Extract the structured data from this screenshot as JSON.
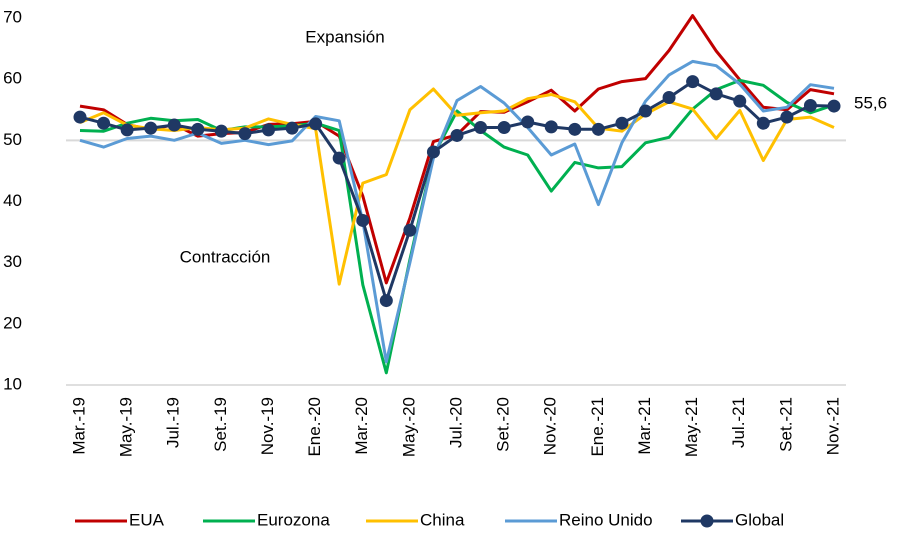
{
  "chart_data": {
    "type": "line",
    "annotations": [
      "Expansión",
      "Contracción"
    ],
    "hline": 50,
    "categories": [
      "Mar.-19",
      null,
      "May.-19",
      null,
      "Jul.-19",
      null,
      "Set.-19",
      null,
      "Nov.-19",
      null,
      "Ene.-20",
      null,
      "Mar.-20",
      null,
      "May.-20",
      null,
      "Jul.-20",
      null,
      "Set.-20",
      null,
      "Nov.-20",
      null,
      "Ene.-21",
      null,
      "Mar.-21",
      null,
      "May.-21",
      null,
      "Jul.-21",
      null,
      "Set.-21",
      null,
      "Nov.-21"
    ],
    "series": [
      {
        "name": "EUA",
        "color": "#c00000",
        "values": [
          55.6,
          55.0,
          52.6,
          51.7,
          52.6,
          50.7,
          51.1,
          51.3,
          52.6,
          52.7,
          53.1,
          50.7,
          40.9,
          26.7,
          37.3,
          49.8,
          50.9,
          54.7,
          54.6,
          56.3,
          58.2,
          54.8,
          58.4,
          59.6,
          60.1,
          64.7,
          70.4,
          64.6,
          59.9,
          55.4,
          55.0,
          58.3,
          57.6
        ]
      },
      {
        "name": "Eurozona",
        "color": "#00b050",
        "values": [
          51.6,
          51.5,
          52.8,
          53.6,
          53.2,
          53.4,
          51.6,
          52.2,
          52.2,
          52.4,
          52.8,
          51.6,
          26.4,
          12.0,
          30.5,
          47.5,
          54.8,
          51.6,
          48.9,
          47.6,
          41.7,
          46.4,
          45.5,
          45.7,
          49.6,
          50.5,
          55.1,
          58.3,
          59.8,
          59.0,
          56.2,
          54.5,
          55.8
        ]
      },
      {
        "name": "China",
        "color": "#ffc000",
        "values": [
          52.9,
          54.5,
          52.5,
          51.9,
          51.6,
          52.1,
          51.7,
          52.0,
          53.5,
          52.6,
          51.9,
          26.5,
          43.0,
          44.4,
          55.0,
          58.4,
          54.1,
          54.5,
          54.8,
          56.8,
          57.5,
          56.3,
          52.0,
          51.5,
          54.3,
          56.3,
          55.1,
          50.3,
          54.9,
          46.7,
          53.4,
          53.8,
          52.1
        ]
      },
      {
        "name": "Reino Unido",
        "color": "#5b9bd5",
        "values": [
          50.0,
          48.9,
          50.3,
          50.7,
          50.0,
          51.2,
          49.5,
          50.0,
          49.3,
          49.9,
          53.9,
          53.2,
          36.8,
          13.8,
          30.0,
          47.1,
          56.5,
          58.8,
          56.1,
          52.1,
          47.6,
          49.4,
          39.5,
          49.6,
          56.4,
          60.7,
          62.9,
          62.2,
          59.2,
          54.8,
          55.4,
          59.1,
          58.5
        ]
      },
      {
        "name": "Global",
        "color": "#1f3864",
        "marker": "circle",
        "values": [
          53.8,
          52.8,
          51.7,
          52.0,
          52.5,
          51.8,
          51.5,
          51.1,
          51.7,
          52.0,
          52.7,
          47.1,
          36.9,
          23.8,
          35.3,
          48.1,
          50.8,
          52.1,
          52.1,
          53.0,
          52.2,
          51.8,
          51.8,
          52.8,
          54.8,
          57.0,
          59.6,
          57.6,
          56.4,
          52.8,
          53.8,
          55.7,
          55.6
        ],
        "value_labels": [
          null,
          null,
          null,
          null,
          null,
          null,
          null,
          null,
          null,
          null,
          null,
          null,
          null,
          null,
          null,
          null,
          null,
          null,
          null,
          null,
          null,
          null,
          null,
          null,
          null,
          null,
          null,
          null,
          null,
          null,
          null,
          null,
          "55,6"
        ]
      }
    ],
    "ylim": [
      10,
      70
    ],
    "yticks": [
      10,
      20,
      30,
      40,
      50,
      60,
      70
    ]
  }
}
